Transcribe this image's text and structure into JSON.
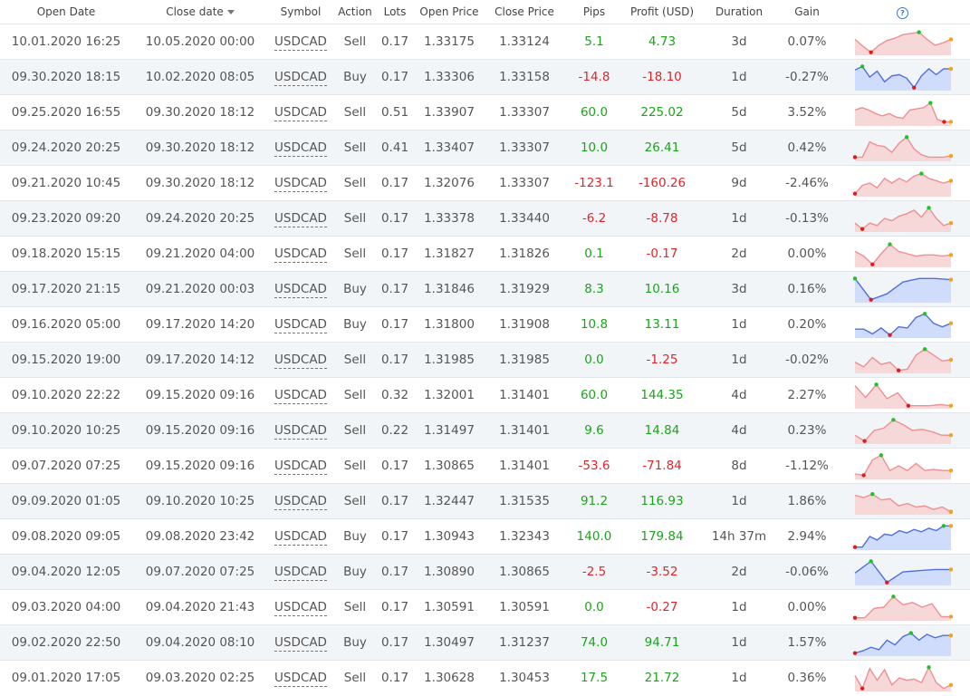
{
  "headers": {
    "open_date": "Open Date",
    "close_date": "Close date",
    "symbol": "Symbol",
    "action": "Action",
    "lots": "Lots",
    "open_price": "Open Price",
    "close_price": "Close Price",
    "pips": "Pips",
    "profit": "Profit (USD)",
    "duration": "Duration",
    "gain": "Gain",
    "help_icon": "?"
  },
  "colors": {
    "sell_line": "#ef8f92",
    "sell_fill": "#f6d8d9",
    "buy_line": "#4f6fe0",
    "buy_fill": "#cfdcfb",
    "max_dot": "#22c12a",
    "min_dot": "#e01b1b",
    "end_dot": "#f7a11a",
    "positive": "#1aa51a",
    "negative": "#e0262a"
  },
  "trades": [
    {
      "open": "10.01.2020 16:25",
      "close": "10.05.2020 00:00",
      "symbol": "USDCAD",
      "action": "Sell",
      "lots": "0.17",
      "open_price": "1.33175",
      "close_price": "1.33124",
      "pips": "5.1",
      "profit": "4.73",
      "duration": "3d",
      "gain": "0.07%",
      "spark": [
        0.6,
        0.3,
        0.05,
        0.35,
        0.55,
        0.65,
        0.8,
        0.85,
        0.9,
        0.6,
        0.35,
        0.45,
        0.6
      ]
    },
    {
      "open": "09.30.2020 18:15",
      "close": "10.02.2020 08:05",
      "symbol": "USDCAD",
      "action": "Buy",
      "lots": "0.17",
      "open_price": "1.33306",
      "close_price": "1.33158",
      "pips": "-14.8",
      "profit": "-18.10",
      "duration": "1d",
      "gain": "-0.27%",
      "spark": [
        0.8,
        0.95,
        0.5,
        0.75,
        0.3,
        0.55,
        0.6,
        0.45,
        0.05,
        0.55,
        0.85,
        0.6,
        0.85,
        0.85
      ]
    },
    {
      "open": "09.25.2020 16:55",
      "close": "09.30.2020 18:12",
      "symbol": "USDCAD",
      "action": "Sell",
      "lots": "0.51",
      "open_price": "1.33907",
      "close_price": "1.33307",
      "pips": "60.0",
      "profit": "225.02",
      "duration": "5d",
      "gain": "3.52%",
      "spark": [
        0.6,
        0.7,
        0.6,
        0.45,
        0.35,
        0.45,
        0.3,
        0.25,
        0.6,
        0.65,
        0.7,
        0.9,
        0.2,
        0.1,
        0.1
      ]
    },
    {
      "open": "09.24.2020 20:25",
      "close": "09.30.2020 18:12",
      "symbol": "USDCAD",
      "action": "Sell",
      "lots": "0.41",
      "open_price": "1.33407",
      "close_price": "1.33307",
      "pips": "10.0",
      "profit": "26.41",
      "duration": "5d",
      "gain": "0.42%",
      "spark": [
        0.1,
        0.1,
        0.75,
        0.6,
        0.55,
        0.3,
        0.7,
        0.95,
        0.45,
        0.2,
        0.1,
        0.1,
        0.1,
        0.15
      ]
    },
    {
      "open": "09.21.2020 10:45",
      "close": "09.30.2020 18:12",
      "symbol": "USDCAD",
      "action": "Sell",
      "lots": "0.17",
      "open_price": "1.32076",
      "close_price": "1.33307",
      "pips": "-123.1",
      "profit": "-160.26",
      "duration": "9d",
      "gain": "-2.46%",
      "spark": [
        0.05,
        0.4,
        0.5,
        0.3,
        0.7,
        0.5,
        0.7,
        0.55,
        0.8,
        0.9,
        0.7,
        0.6,
        0.5,
        0.6
      ]
    },
    {
      "open": "09.23.2020 09:20",
      "close": "09.24.2020 20:25",
      "symbol": "USDCAD",
      "action": "Sell",
      "lots": "0.17",
      "open_price": "1.33378",
      "close_price": "1.33440",
      "pips": "-6.2",
      "profit": "-8.78",
      "duration": "1d",
      "gain": "-0.13%",
      "spark": [
        0.3,
        0.05,
        0.3,
        0.2,
        0.5,
        0.4,
        0.6,
        0.7,
        0.85,
        0.55,
        0.95,
        0.5,
        0.2,
        0.3
      ]
    },
    {
      "open": "09.18.2020 15:15",
      "close": "09.21.2020 04:00",
      "symbol": "USDCAD",
      "action": "Sell",
      "lots": "0.17",
      "open_price": "1.31827",
      "close_price": "1.31826",
      "pips": "0.1",
      "profit": "-0.17",
      "duration": "2d",
      "gain": "0.00%",
      "spark": [
        0.6,
        0.4,
        0.05,
        0.5,
        0.9,
        0.6,
        0.5,
        0.4,
        0.45,
        0.45,
        0.4,
        0.45
      ]
    },
    {
      "open": "09.17.2020 21:15",
      "close": "09.21.2020 00:03",
      "symbol": "USDCAD",
      "action": "Buy",
      "lots": "0.17",
      "open_price": "1.31846",
      "close_price": "1.31929",
      "pips": "8.3",
      "profit": "10.16",
      "duration": "3d",
      "gain": "0.16%",
      "spark": [
        0.95,
        0.05,
        0.3,
        0.8,
        0.95,
        0.95,
        0.9
      ]
    },
    {
      "open": "09.16.2020 05:00",
      "close": "09.17.2020 14:20",
      "symbol": "USDCAD",
      "action": "Buy",
      "lots": "0.17",
      "open_price": "1.31800",
      "close_price": "1.31908",
      "pips": "10.8",
      "profit": "13.11",
      "duration": "1d",
      "gain": "0.20%",
      "spark": [
        0.3,
        0.3,
        0.1,
        0.35,
        0.05,
        0.4,
        0.35,
        0.8,
        0.95,
        0.55,
        0.4,
        0.55
      ]
    },
    {
      "open": "09.15.2020 19:00",
      "close": "09.17.2020 14:12",
      "symbol": "USDCAD",
      "action": "Sell",
      "lots": "0.17",
      "open_price": "1.31985",
      "close_price": "1.31985",
      "pips": "0.0",
      "profit": "-1.25",
      "duration": "1d",
      "gain": "-0.02%",
      "spark": [
        0.4,
        0.2,
        0.6,
        0.3,
        0.4,
        0.05,
        0.1,
        0.7,
        0.95,
        0.7,
        0.45,
        0.5
      ]
    },
    {
      "open": "09.10.2020 22:22",
      "close": "09.15.2020 09:16",
      "symbol": "USDCAD",
      "action": "Sell",
      "lots": "0.32",
      "open_price": "1.32001",
      "close_price": "1.31401",
      "pips": "60.0",
      "profit": "144.35",
      "duration": "4d",
      "gain": "2.27%",
      "spark": [
        0.9,
        0.4,
        0.95,
        0.35,
        0.6,
        0.05,
        0.05,
        0.05,
        0.1,
        0.05
      ]
    },
    {
      "open": "09.10.2020 10:25",
      "close": "09.15.2020 09:16",
      "symbol": "USDCAD",
      "action": "Sell",
      "lots": "0.22",
      "open_price": "1.31497",
      "close_price": "1.31401",
      "pips": "9.6",
      "profit": "14.84",
      "duration": "4d",
      "gain": "0.23%",
      "spark": [
        0.3,
        0.05,
        0.5,
        0.6,
        0.95,
        0.75,
        0.5,
        0.55,
        0.45,
        0.3,
        0.3
      ]
    },
    {
      "open": "09.07.2020 07:25",
      "close": "09.15.2020 09:16",
      "symbol": "USDCAD",
      "action": "Sell",
      "lots": "0.17",
      "open_price": "1.30865",
      "close_price": "1.31401",
      "pips": "-53.6",
      "profit": "-71.84",
      "duration": "8d",
      "gain": "-1.12%",
      "spark": [
        0.15,
        0.1,
        0.75,
        0.95,
        0.3,
        0.5,
        0.3,
        0.6,
        0.3,
        0.35,
        0.3,
        0.3
      ]
    },
    {
      "open": "09.09.2020 01:05",
      "close": "09.10.2020 10:25",
      "symbol": "USDCAD",
      "action": "Sell",
      "lots": "0.17",
      "open_price": "1.32447",
      "close_price": "1.31535",
      "pips": "91.2",
      "profit": "116.93",
      "duration": "1d",
      "gain": "1.86%",
      "spark": [
        0.75,
        0.65,
        0.8,
        0.55,
        0.6,
        0.3,
        0.4,
        0.25,
        0.3,
        0.15,
        0.25,
        0.05
      ]
    },
    {
      "open": "09.08.2020 09:05",
      "close": "09.08.2020 23:42",
      "symbol": "USDCAD",
      "action": "Buy",
      "lots": "0.17",
      "open_price": "1.30943",
      "close_price": "1.32343",
      "pips": "140.0",
      "profit": "179.84",
      "duration": "14h 37m",
      "gain": "2.94%",
      "spark": [
        0.05,
        0.05,
        0.5,
        0.35,
        0.6,
        0.55,
        0.75,
        0.65,
        0.8,
        0.7,
        0.85,
        0.75,
        0.95,
        0.95
      ]
    },
    {
      "open": "09.04.2020 12:05",
      "close": "09.07.2020 07:25",
      "symbol": "USDCAD",
      "action": "Buy",
      "lots": "0.17",
      "open_price": "1.30890",
      "close_price": "1.30865",
      "pips": "-2.5",
      "profit": "-3.52",
      "duration": "2d",
      "gain": "-0.06%",
      "spark": [
        0.45,
        0.95,
        0.05,
        0.5,
        0.55,
        0.6,
        0.6
      ]
    },
    {
      "open": "09.03.2020 04:00",
      "close": "09.04.2020 21:43",
      "symbol": "USDCAD",
      "action": "Sell",
      "lots": "0.17",
      "open_price": "1.30591",
      "close_price": "1.30591",
      "pips": "0.0",
      "profit": "-0.27",
      "duration": "1d",
      "gain": "0.00%",
      "spark": [
        0.05,
        0.05,
        0.45,
        0.5,
        0.95,
        0.6,
        0.7,
        0.5,
        0.65,
        0.1,
        0.1
      ]
    },
    {
      "open": "09.02.2020 22:50",
      "close": "09.04.2020 08:10",
      "symbol": "USDCAD",
      "action": "Buy",
      "lots": "0.17",
      "open_price": "1.30497",
      "close_price": "1.31237",
      "pips": "74.0",
      "profit": "94.71",
      "duration": "1d",
      "gain": "1.57%",
      "spark": [
        0.05,
        0.15,
        0.3,
        0.2,
        0.6,
        0.4,
        0.75,
        0.9,
        0.6,
        0.85,
        0.7,
        0.8,
        0.8
      ]
    },
    {
      "open": "09.01.2020 17:05",
      "close": "09.03.2020 02:25",
      "symbol": "USDCAD",
      "action": "Sell",
      "lots": "0.17",
      "open_price": "1.30628",
      "close_price": "1.30453",
      "pips": "17.5",
      "profit": "21.72",
      "duration": "1d",
      "gain": "0.36%",
      "spark": [
        0.6,
        0.05,
        0.9,
        0.4,
        0.85,
        0.2,
        0.5,
        0.4,
        0.45,
        0.3,
        0.95,
        0.3,
        0.05,
        0.2
      ]
    }
  ]
}
